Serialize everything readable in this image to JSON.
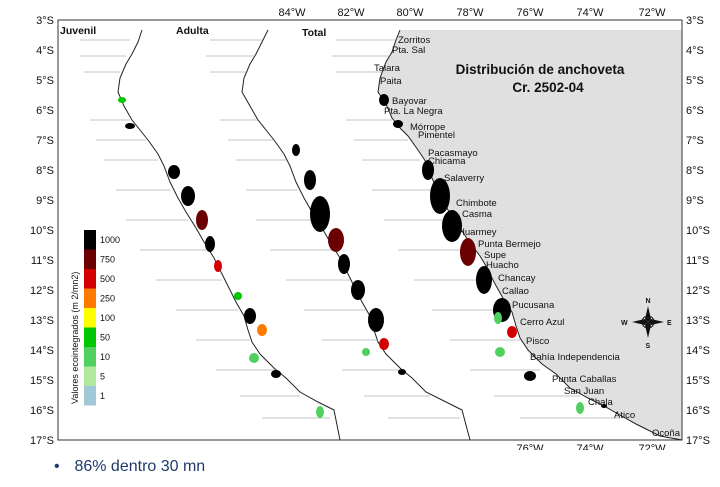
{
  "map": {
    "title_line1": "Distribución de anchoveta",
    "title_line2": "Cr. 2502-04",
    "panels": [
      "Juvenil",
      "Adulta",
      "Total"
    ],
    "lat_labels": [
      "3°S",
      "4°S",
      "5°S",
      "6°S",
      "7°S",
      "8°S",
      "9°S",
      "10°S",
      "11°S",
      "12°S",
      "13°S",
      "14°S",
      "15°S",
      "16°S",
      "17°S"
    ],
    "lon_labels_top": [
      "84°W",
      "82°W",
      "80°W",
      "78°W",
      "76°W",
      "74°W",
      "72°W"
    ],
    "lon_labels_bottom": [
      "76°W",
      "74°W",
      "72°W"
    ],
    "places": [
      "Zorritos",
      "Pta. Sal",
      "Talara",
      "Paita",
      "Bayovar",
      "Pta. La Negra",
      "Mórrope",
      "Pimentel",
      "Pacasmayo",
      "Chicama",
      "Salaverry",
      "Chimbote",
      "Casma",
      "Huarmey",
      "Punta Bermejo",
      "Supe",
      "Huacho",
      "Chancay",
      "Callao",
      "Pucusana",
      "Cerro Azul",
      "Pisco",
      "Bahía Independencia",
      "Punta Caballas",
      "San Juan",
      "Chala",
      "Atico",
      "Ocoña"
    ],
    "legend": {
      "title": "Valores ecointegrados (m 2/mn2)",
      "levels": [
        "1000",
        "750",
        "500",
        "250",
        "100",
        "50",
        "10",
        "5",
        "1"
      ],
      "colors": [
        "#000000",
        "#6b0000",
        "#d40000",
        "#ff7a00",
        "#ffff00",
        "#00c800",
        "#50d060",
        "#b0e8a0",
        "#a0c8d8"
      ]
    },
    "compass": [
      "N",
      "S",
      "E",
      "W"
    ],
    "colors": {
      "land": "#e0e0e0",
      "ocean": "#ffffff"
    }
  },
  "bullet": {
    "text": "86% dentro 30 mn"
  }
}
